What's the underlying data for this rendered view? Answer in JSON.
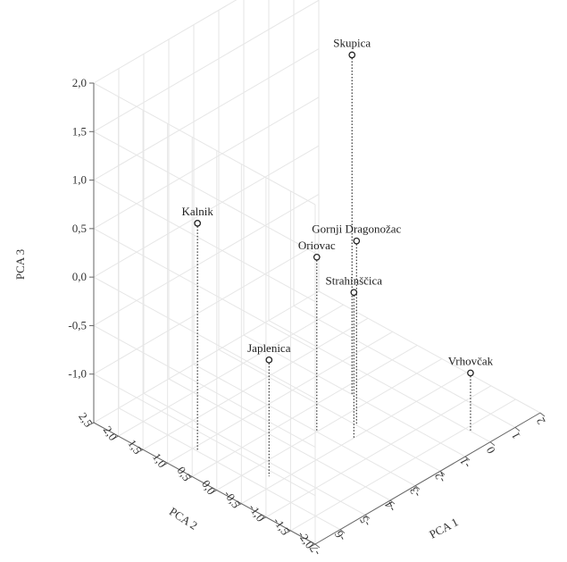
{
  "chart_data": {
    "type": "scatter",
    "dimensions": 3,
    "title": "",
    "xlabel": "PCA 1",
    "ylabel": "PCA 2",
    "zlabel": "PCA 3",
    "x_ticks": [
      "-7",
      "-6",
      "-5",
      "-4",
      "-3",
      "-2",
      "-1",
      "0",
      "1",
      "2"
    ],
    "y_ticks": [
      "-2,0",
      "-1,5",
      "-1,0",
      "-0,5",
      "0,0",
      "0,5",
      "1,0",
      "1,5",
      "2,0",
      "2,5"
    ],
    "z_ticks": [
      "-1,0",
      "-0,5",
      "0,0",
      "0,5",
      "1,0",
      "1,5",
      "2,0"
    ],
    "xlim": [
      -7,
      2
    ],
    "ylim": [
      -2.0,
      2.5
    ],
    "zlim": [
      -1.5,
      2.0
    ],
    "grid": true,
    "points": [
      {
        "label": "Skupica",
        "x": -1.0,
        "y": 0.3,
        "z": 2.0
      },
      {
        "label": "Kalnik",
        "x": -6.0,
        "y": 0.9,
        "z": 0.85
      },
      {
        "label": "Gornji Dragonožac",
        "x": -2.0,
        "y": -0.3,
        "z": 0.4
      },
      {
        "label": "Oriovac",
        "x": -3.0,
        "y": 0.0,
        "z": 0.3
      },
      {
        "label": "Strahinščica",
        "x": -2.5,
        "y": -0.5,
        "z": 0.0
      },
      {
        "label": "Japlenica",
        "x": -5.5,
        "y": -0.3,
        "z": -0.3
      },
      {
        "label": "Vrhovčak",
        "x": 0.0,
        "y": -1.6,
        "z": -0.9
      }
    ]
  }
}
